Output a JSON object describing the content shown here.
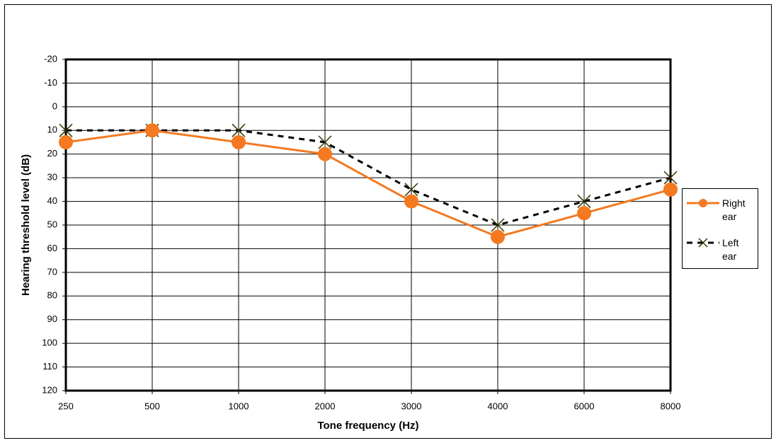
{
  "chart_data": {
    "type": "line",
    "x_label": "Tone frequency (Hz)",
    "y_label": "Hearing threshold level (dB)",
    "categories": [
      "250",
      "500",
      "1000",
      "2000",
      "3000",
      "4000",
      "6000",
      "8000"
    ],
    "series": [
      {
        "name": "Right ear",
        "color": "#f47920",
        "marker": "circle",
        "dash": false,
        "values": [
          15,
          10,
          15,
          20,
          40,
          55,
          45,
          35
        ]
      },
      {
        "name": "Left ear",
        "color": "#000000",
        "marker": "x",
        "dash": true,
        "values": [
          10,
          10,
          10,
          15,
          35,
          50,
          40,
          30
        ]
      }
    ],
    "ylim": [
      -20,
      120
    ],
    "y_reversed": true,
    "yticks": [
      -20,
      -10,
      0,
      10,
      20,
      30,
      40,
      50,
      60,
      70,
      80,
      90,
      100,
      110,
      120
    ],
    "grid": true,
    "legend": "right"
  }
}
